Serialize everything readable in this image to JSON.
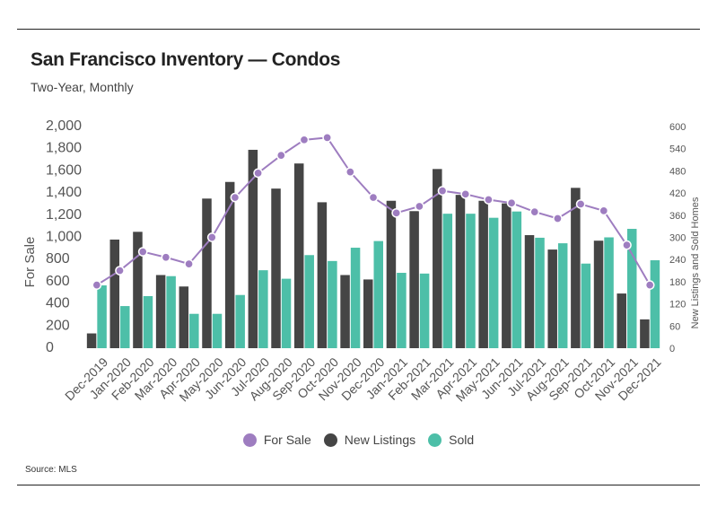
{
  "header": {
    "title": "San Francisco Inventory — Condos",
    "subtitle": "Two-Year, Monthly"
  },
  "footer": {
    "source": "Source:  MLS"
  },
  "colors": {
    "for_sale": "#9e7dc0",
    "new_listings": "#454545",
    "sold": "#4dbfa8"
  },
  "chart_data": {
    "type": "bar",
    "title": "San Francisco Inventory — Condos",
    "subtitle": "Two-Year, Monthly",
    "categories": [
      "Dec-2019",
      "Jan-2020",
      "Feb-2020",
      "Mar-2020",
      "Apr-2020",
      "May-2020",
      "Jun-2020",
      "Jul-2020",
      "Aug-2020",
      "Sep-2020",
      "Oct-2020",
      "Nov-2020",
      "Dec-2020",
      "Jan-2021",
      "Feb-2021",
      "Mar-2021",
      "Apr-2021",
      "May-2021",
      "Jun-2021",
      "Jul-2021",
      "Aug-2021",
      "Sep-2021",
      "Oct-2021",
      "Nov-2021",
      "Dec-2021"
    ],
    "ylabel": "For Sale",
    "ylim": [
      0,
      2000
    ],
    "yticks": [
      "0",
      "200",
      "400",
      "600",
      "800",
      "1,000",
      "1,200",
      "1,400",
      "1,600",
      "1,800",
      "2,000"
    ],
    "y2label": "New Listings and Sold Homes",
    "y2lim": [
      0,
      600
    ],
    "y2ticks": [
      "0",
      "60",
      "120",
      "180",
      "240",
      "300",
      "360",
      "420",
      "480",
      "540",
      "600"
    ],
    "series": [
      {
        "name": "For Sale",
        "kind": "line",
        "axis": "left",
        "values": [
          570,
          700,
          870,
          820,
          760,
          1000,
          1360,
          1580,
          1740,
          1880,
          1900,
          1590,
          1360,
          1220,
          1280,
          1420,
          1390,
          1340,
          1310,
          1230,
          1170,
          1300,
          1240,
          930,
          570
        ]
      },
      {
        "name": "New Listings",
        "kind": "bar",
        "axis": "right",
        "values": [
          40,
          294,
          315,
          198,
          167,
          405,
          450,
          537,
          432,
          500,
          395,
          198,
          186,
          399,
          371,
          485,
          415,
          399,
          392,
          306,
          267,
          434,
          291,
          148,
          78
        ]
      },
      {
        "name": "Sold",
        "kind": "bar",
        "axis": "right",
        "values": [
          170,
          114,
          141,
          195,
          93,
          93,
          144,
          211,
          188,
          252,
          236,
          272,
          290,
          204,
          202,
          364,
          364,
          353,
          370,
          299,
          284,
          229,
          300,
          323,
          238
        ]
      }
    ],
    "legend": {
      "position": "bottom",
      "entries": [
        "For Sale",
        "New Listings",
        "Sold"
      ]
    },
    "grid": false
  }
}
